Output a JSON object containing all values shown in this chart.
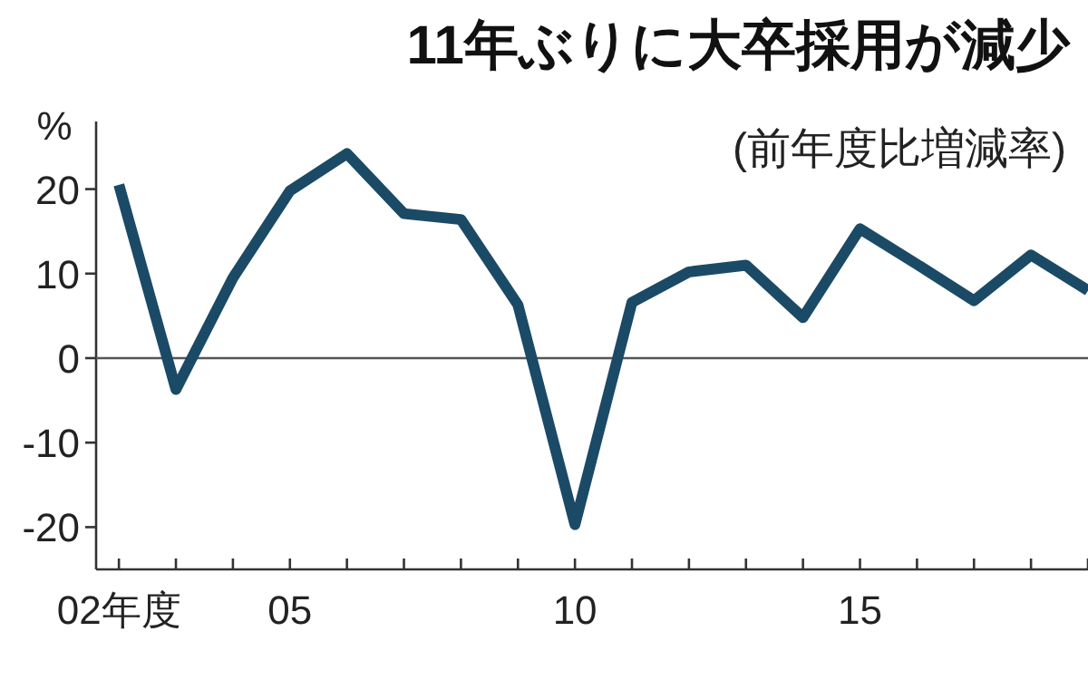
{
  "chart_data": {
    "type": "line",
    "title": "11年ぶりに大卒採用が減少",
    "subtitle": "(前年度比増減率)",
    "ylabel": "%",
    "x": [
      2,
      3,
      4,
      5,
      6,
      7,
      8,
      9,
      10,
      11,
      12,
      13,
      14,
      15,
      16,
      17,
      18,
      19
    ],
    "series": [
      {
        "color": "#1b4a66",
        "values": [
          20.5,
          -3.7,
          9.5,
          19.8,
          24.2,
          17.1,
          16.4,
          6.3,
          -19.7,
          6.6,
          10.2,
          11.0,
          4.8,
          15.3,
          11.1,
          6.8,
          12.2,
          8
        ]
      }
    ],
    "xlim": [
      1.6,
      19
    ],
    "xticks": [
      {
        "value": 2,
        "label": "02年度"
      },
      {
        "value": 3,
        "label": null
      },
      {
        "value": 4,
        "label": null
      },
      {
        "value": 5,
        "label": "05"
      },
      {
        "value": 6,
        "label": null
      },
      {
        "value": 7,
        "label": null
      },
      {
        "value": 8,
        "label": null
      },
      {
        "value": 9,
        "label": null
      },
      10,
      {
        "value": 11,
        "label": null
      },
      {
        "value": 12,
        "label": null
      },
      {
        "value": 13,
        "label": null
      },
      {
        "value": 14,
        "label": null
      },
      15,
      {
        "value": 16,
        "label": null
      },
      {
        "value": 17,
        "label": null
      },
      {
        "value": 18,
        "label": null
      },
      {
        "value": 19,
        "label": null
      }
    ],
    "ylim": [
      -25,
      28
    ],
    "yticks": [
      -20,
      -10,
      0,
      10,
      20
    ],
    "ref_lines": [
      {
        "axis": "y",
        "value": 0,
        "color": "#555555",
        "line_style": "solid"
      }
    ],
    "grid": false,
    "marker": "none",
    "line_style": "solid"
  }
}
